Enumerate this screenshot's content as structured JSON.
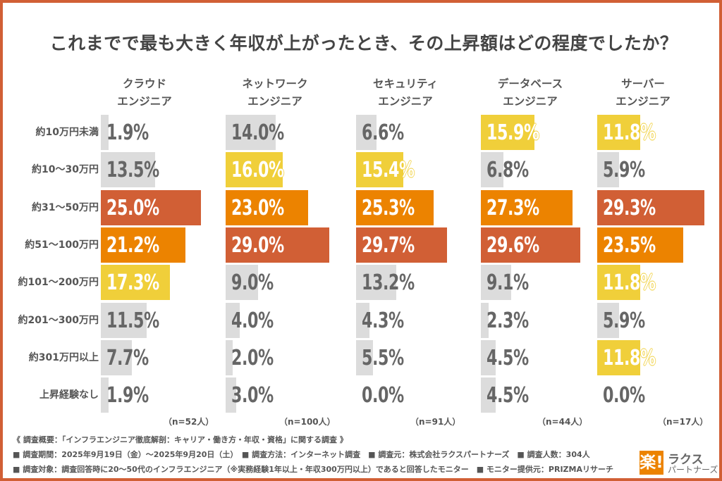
{
  "chart_data": {
    "type": "bar",
    "orientation": "horizontal",
    "title": "これまでで最も大きく年収が上がったとき、その上昇額はどの程度でしたか？",
    "categories": [
      "約10万円未満",
      "約10～30万円",
      "約31～50万円",
      "約51～100万円",
      "約101～200万円",
      "約201～300万円",
      "約301万円以上",
      "上昇経験なし"
    ],
    "unit": "%",
    "series": [
      {
        "name_line1": "クラウド",
        "name_line2": "エンジニア",
        "n_label": "（n=52人）",
        "values": [
          1.9,
          13.5,
          25.0,
          21.2,
          17.3,
          11.5,
          7.7,
          1.9
        ],
        "labels": [
          "1.9%",
          "13.5%",
          "25.0%",
          "21.2%",
          "17.3%",
          "11.5%",
          "7.7%",
          "1.9%"
        ]
      },
      {
        "name_line1": "ネットワーク",
        "name_line2": "エンジニア",
        "n_label": "（n=100人）",
        "values": [
          14.0,
          16.0,
          23.0,
          29.0,
          9.0,
          4.0,
          2.0,
          3.0
        ],
        "labels": [
          "14.0%",
          "16.0%",
          "23.0%",
          "29.0%",
          "9.0%",
          "4.0%",
          "2.0%",
          "3.0%"
        ]
      },
      {
        "name_line1": "セキュリティ",
        "name_line2": "エンジニア",
        "n_label": "（n=91人）",
        "values": [
          6.6,
          15.4,
          25.3,
          29.7,
          13.2,
          4.3,
          5.5,
          0.0
        ],
        "labels": [
          "6.6%",
          "15.4%",
          "25.3%",
          "29.7%",
          "13.2%",
          "4.3%",
          "5.5%",
          "0.0%"
        ]
      },
      {
        "name_line1": "データベース",
        "name_line2": "エンジニア",
        "n_label": "（n=44人）",
        "values": [
          15.9,
          6.8,
          27.3,
          29.6,
          9.1,
          2.3,
          4.5,
          4.5
        ],
        "labels": [
          "15.9%",
          "6.8%",
          "27.3%",
          "29.6%",
          "9.1%",
          "2.3%",
          "4.5%",
          "4.5%"
        ]
      },
      {
        "name_line1": "サーバー",
        "name_line2": "エンジニア",
        "n_label": "（n=17人）",
        "values": [
          11.8,
          5.9,
          29.3,
          23.5,
          11.8,
          5.9,
          11.8,
          0.0
        ],
        "labels": [
          "11.8%",
          "5.9%",
          "29.3%",
          "23.5%",
          "11.8%",
          "5.9%",
          "11.8%",
          "0.0%"
        ]
      }
    ],
    "colors": {
      "rank1": "#D15F35",
      "rank2": "#EC8300",
      "rank3": "#F0CF3A",
      "other": "#DCDCDC"
    },
    "grid": false,
    "legend": "none"
  },
  "footer": {
    "overview": "《 調査概要：「インフラエンジニア徹底解剖：キャリア・働き方・年収・資格」に関する調査 》",
    "line2": "■ 調査期間：2025年9月19日（金）～2025年9月20日（土）　■ 調査方法：インターネット調査　■ 調査元：株式会社ラクスパートナーズ　■ 調査人数：304人",
    "line3": "■ 調査対象：調査回答時に20～50代のインフラエンジニア（※実務経験1年以上・年収300万円以上）であると回答したモニター　■ モニター提供元：PRIZMAリサーチ"
  },
  "logo": {
    "mark": "楽!",
    "name": "ラクス",
    "sub": "パートナーズ"
  }
}
